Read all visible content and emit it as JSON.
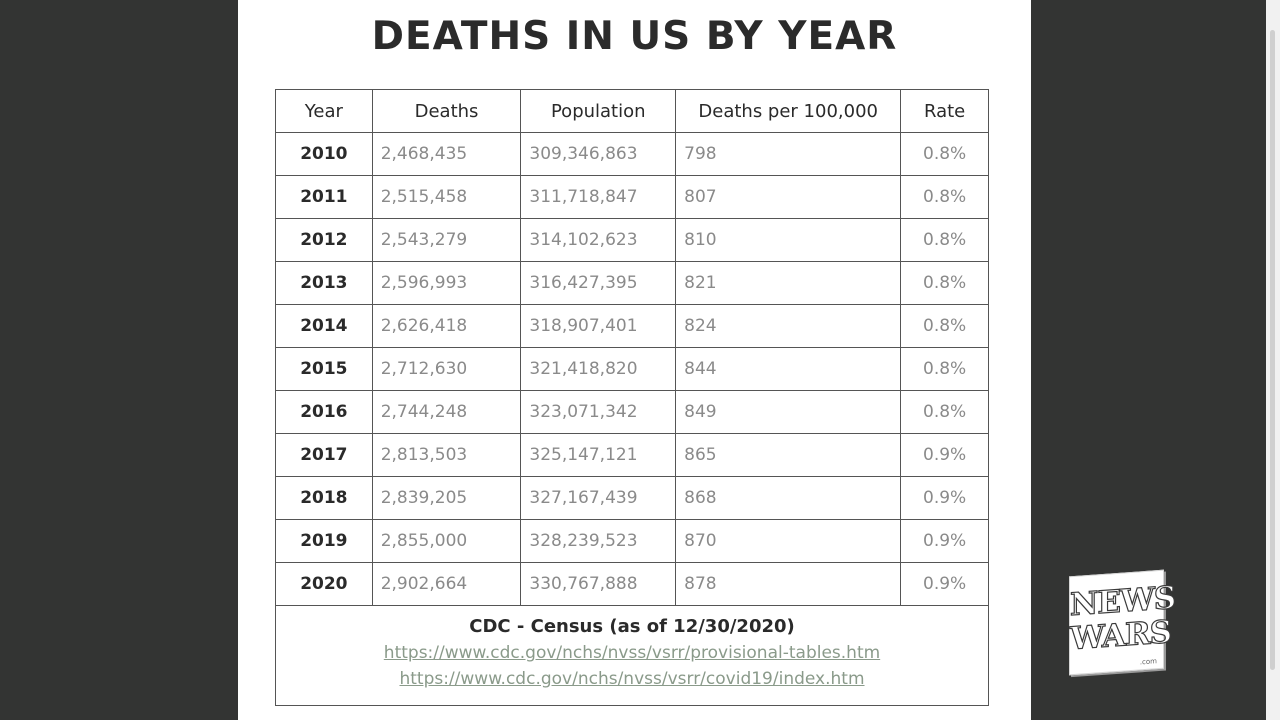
{
  "slide": {
    "title": "DEATHS IN US BY YEAR",
    "columns": [
      "Year",
      "Deaths",
      "Population",
      "Deaths per 100,000",
      "Rate"
    ],
    "rows": [
      {
        "year": "2010",
        "deaths": "2,468,435",
        "population": "309,346,863",
        "per100k": "798",
        "rate": "0.8%"
      },
      {
        "year": "2011",
        "deaths": "2,515,458",
        "population": "311,718,847",
        "per100k": "807",
        "rate": "0.8%"
      },
      {
        "year": "2012",
        "deaths": "2,543,279",
        "population": "314,102,623",
        "per100k": "810",
        "rate": "0.8%"
      },
      {
        "year": "2013",
        "deaths": "2,596,993",
        "population": "316,427,395",
        "per100k": "821",
        "rate": "0.8%"
      },
      {
        "year": "2014",
        "deaths": "2,626,418",
        "population": "318,907,401",
        "per100k": "824",
        "rate": "0.8%"
      },
      {
        "year": "2015",
        "deaths": "2,712,630",
        "population": "321,418,820",
        "per100k": "844",
        "rate": "0.8%"
      },
      {
        "year": "2016",
        "deaths": "2,744,248",
        "population": "323,071,342",
        "per100k": "849",
        "rate": "0.8%"
      },
      {
        "year": "2017",
        "deaths": "2,813,503",
        "population": "325,147,121",
        "per100k": "865",
        "rate": "0.9%"
      },
      {
        "year": "2018",
        "deaths": "2,839,205",
        "population": "327,167,439",
        "per100k": "868",
        "rate": "0.9%"
      },
      {
        "year": "2019",
        "deaths": "2,855,000",
        "population": "328,239,523",
        "per100k": "870",
        "rate": "0.9%"
      },
      {
        "year": "2020",
        "deaths": "2,902,664",
        "population": "330,767,888",
        "per100k": "878",
        "rate": "0.9%"
      }
    ],
    "source": {
      "title": "CDC - Census (as of 12/30/2020)",
      "links": [
        "https://www.cdc.gov/nchs/nvss/vsrr/provisional-tables.htm",
        "https://www.cdc.gov/nchs/nvss/vsrr/covid19/index.htm"
      ]
    }
  },
  "watermark": {
    "line1": "NEWS",
    "line2": "WARS",
    "line3": ".com"
  },
  "colors": {
    "background": "#333433",
    "slide": "#ffffff",
    "text": "#2a2a2a",
    "muted": "#8a8a8a"
  }
}
